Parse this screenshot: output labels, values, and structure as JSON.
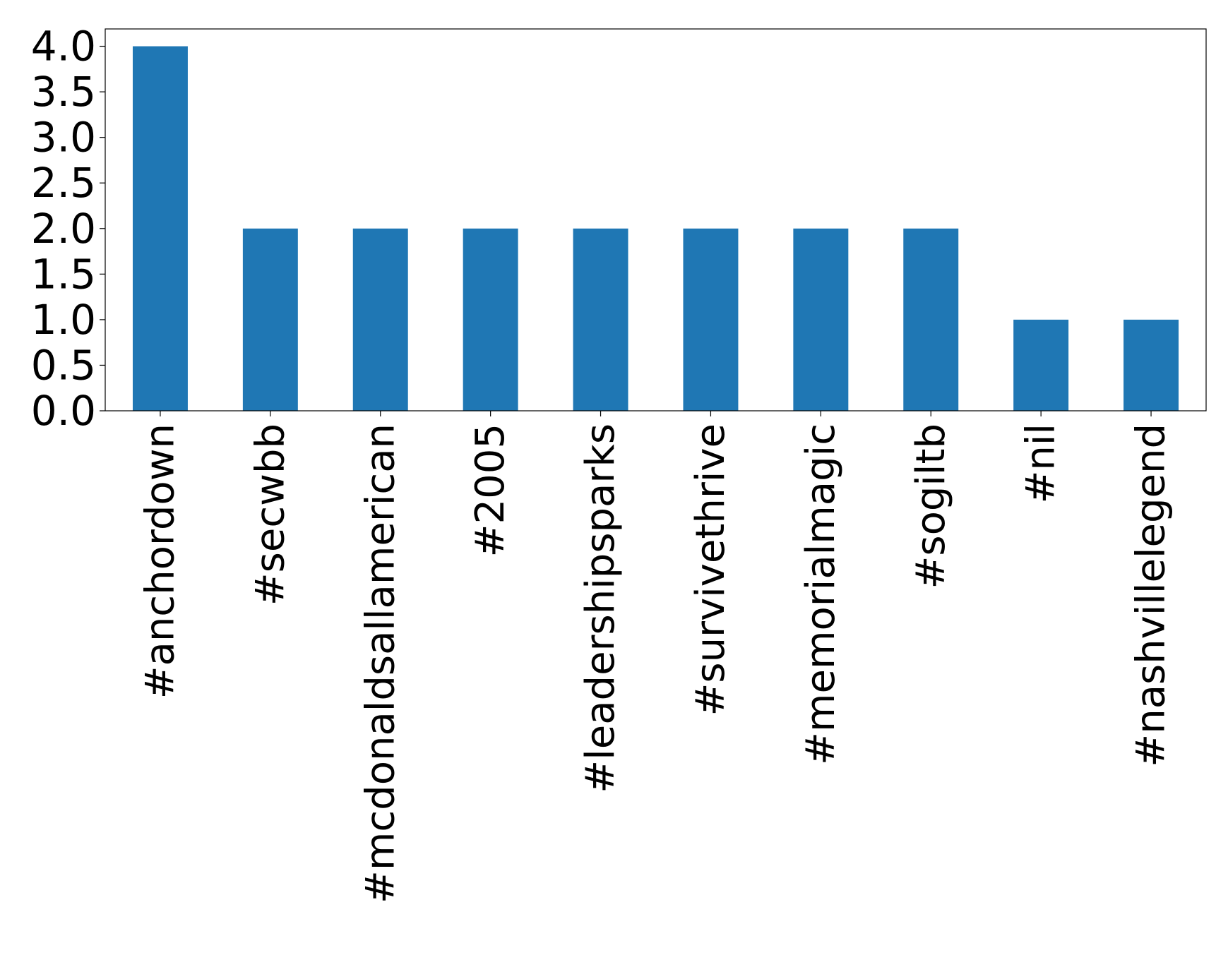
{
  "chart_data": {
    "type": "bar",
    "categories": [
      "#anchordown",
      "#secwbb",
      "#mcdonaldsallamerican",
      "#2005",
      "#leadershipsparks",
      "#survivethrive",
      "#memorialmagic",
      "#sogiltb",
      "#nil",
      "#nashvillelegend"
    ],
    "values": [
      4,
      2,
      2,
      2,
      2,
      2,
      2,
      2,
      1,
      1
    ],
    "color": "#1f77b4",
    "ylim": [
      0,
      4.19
    ],
    "yticks": [
      {
        "value": 0,
        "label": "0.0"
      },
      {
        "value": 0.5,
        "label": "0.5"
      },
      {
        "value": 1,
        "label": "1.0"
      },
      {
        "value": 1.5,
        "label": "1.5"
      },
      {
        "value": 2,
        "label": "2.0"
      },
      {
        "value": 2.5,
        "label": "2.5"
      },
      {
        "value": 3,
        "label": "3.0"
      },
      {
        "value": 3.5,
        "label": "3.5"
      },
      {
        "value": 4,
        "label": "4.0"
      }
    ],
    "grid": false
  }
}
